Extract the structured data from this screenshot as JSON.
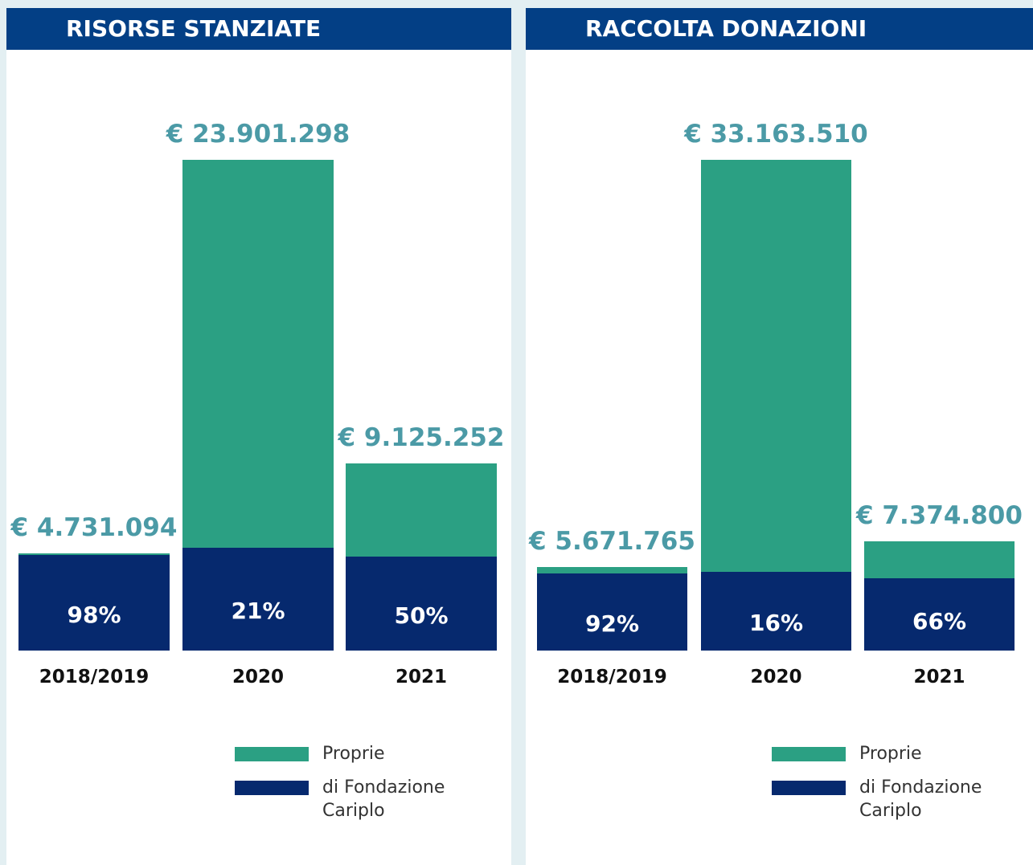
{
  "chart_data": [
    {
      "type": "bar",
      "title": "RISORSE STANZIATE",
      "categories": [
        "2018/2019",
        "2020",
        "2021"
      ],
      "values": [
        4731094,
        23901298,
        9125252
      ],
      "value_labels": [
        "€ 4.731.094",
        "€ 23.901.298",
        "€ 9.125.252"
      ],
      "shares": [
        98,
        21,
        50
      ],
      "share_labels": [
        "98%",
        "21%",
        "50%"
      ],
      "legend": [
        {
          "label": "Proprie",
          "color": "#2ba083"
        },
        {
          "label": "di Fondazione Cariplo",
          "color": "#06296e"
        }
      ]
    },
    {
      "type": "bar",
      "title": "RACCOLTA DONAZIONI",
      "categories": [
        "2018/2019",
        "2020",
        "2021"
      ],
      "values": [
        5671765,
        33163510,
        7374800
      ],
      "value_labels": [
        "€ 5.671.765",
        "€ 33.163.510",
        "€ 7.374.800"
      ],
      "shares": [
        92,
        16,
        66
      ],
      "share_labels": [
        "92%",
        "16%",
        "66%"
      ],
      "legend": [
        {
          "label": "Proprie",
          "color": "#2ba083"
        },
        {
          "label": "di Fondazione Cariplo",
          "color": "#06296e"
        }
      ]
    }
  ]
}
